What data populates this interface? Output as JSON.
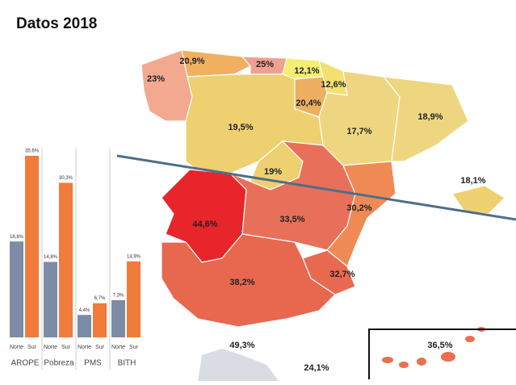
{
  "header": {
    "title": "Datos 2018"
  },
  "chart_data": {
    "type": "bar",
    "categories": [
      "AROPE",
      "Pobreza",
      "PMS",
      "BITH"
    ],
    "series": [
      {
        "name": "Norte",
        "color": "#7d8ca6",
        "values": [
          18.8,
          14.8,
          4.4,
          7.3
        ],
        "value_labels": [
          "18,8%",
          "14,8%",
          "4,4%",
          "7,3%"
        ]
      },
      {
        "name": "Sur",
        "color": "#f07b3a",
        "values": [
          35.6,
          30.3,
          6.7,
          14.9
        ],
        "value_labels": [
          "35,6%",
          "30,3%",
          "6,7%",
          "14,9%"
        ]
      }
    ]
  },
  "map": {
    "regions": [
      {
        "value": 23,
        "label": "23%",
        "color": "#f2a98f"
      },
      {
        "value": 20.9,
        "label": "20,9%",
        "color": "#f0b060"
      },
      {
        "value": 25,
        "label": "25%",
        "color": "#f0a090"
      },
      {
        "value": 12.1,
        "label": "12,1%",
        "color": "#f5ee70"
      },
      {
        "value": 12.6,
        "label": "12,6%",
        "color": "#f3e070"
      },
      {
        "value": 20.4,
        "label": "20,4%",
        "color": "#eeb060"
      },
      {
        "value": 19.5,
        "label": "19,5%",
        "color": "#eed070"
      },
      {
        "value": 17.7,
        "label": "17,7%",
        "color": "#eed680"
      },
      {
        "value": 18.9,
        "label": "18,9%",
        "color": "#eed680"
      },
      {
        "value": 19,
        "label": "19%",
        "color": "#eed070"
      },
      {
        "value": 18.1,
        "label": "18,1%",
        "color": "#eed070"
      },
      {
        "value": 44.6,
        "label": "44,6%",
        "color": "#e8252a"
      },
      {
        "value": 33.5,
        "label": "33,5%",
        "color": "#e8705a"
      },
      {
        "value": 30.2,
        "label": "30,2%",
        "color": "#ef8a55"
      },
      {
        "value": 38.2,
        "label": "38,2%",
        "color": "#e7674f"
      },
      {
        "value": 32.7,
        "label": "32,7%",
        "color": "#e86a50"
      },
      {
        "value": 36.5,
        "label": "36,5%",
        "color": "#e8704f"
      },
      {
        "value": 49.3,
        "label": "49,3%",
        "color": "#e8704f"
      },
      {
        "value": 24.1,
        "label": "24,1%",
        "color": "#f0a090"
      }
    ]
  }
}
